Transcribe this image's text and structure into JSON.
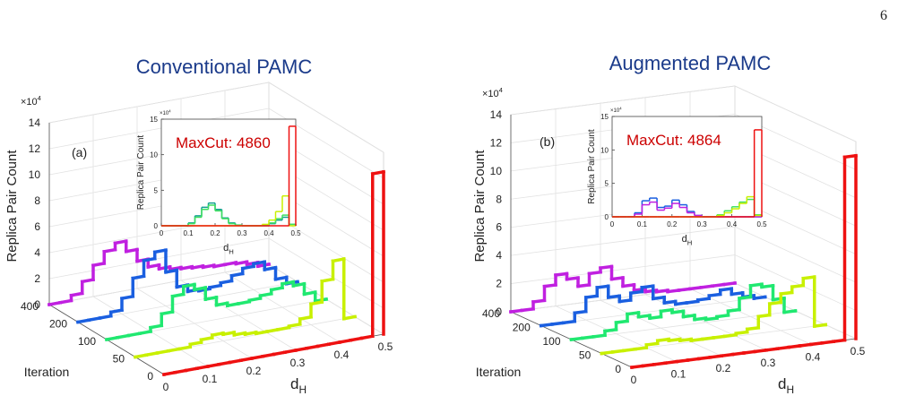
{
  "page_number": "6",
  "chart_data": [
    {
      "type": "histogram3d",
      "title": "Conventional PAMC",
      "panel_label": "(a)",
      "xlabel": "d",
      "xlabel_sub": "H",
      "ylabel": "Iteration",
      "zlabel": "Replica Pair Count",
      "z_multiplier": "×10",
      "z_multiplier_power": "4",
      "xlim": [
        0,
        0.5
      ],
      "xticks": [
        0,
        0.1,
        0.2,
        0.3,
        0.4,
        0.5
      ],
      "yticks": [
        0,
        50,
        100,
        200,
        400
      ],
      "zlim": [
        0,
        14
      ],
      "zticks": [
        0,
        2,
        4,
        6,
        8,
        10,
        12,
        14
      ],
      "bins": [
        0,
        0.025,
        0.05,
        0.075,
        0.1,
        0.125,
        0.15,
        0.175,
        0.2,
        0.225,
        0.25,
        0.275,
        0.3,
        0.325,
        0.35,
        0.375,
        0.4,
        0.425,
        0.45,
        0.475,
        0.5
      ],
      "series": [
        {
          "color": "#ee1111",
          "values": [
            0,
            0,
            0,
            0,
            0,
            0,
            0,
            0,
            0,
            0,
            0,
            0,
            0,
            0,
            0,
            0,
            0,
            0,
            0,
            12.5
          ]
        },
        {
          "color": "#c8f000",
          "values": [
            0,
            0,
            0,
            0,
            0,
            0.2,
            0.4,
            0.6,
            0.5,
            0.3,
            0.2,
            0.1,
            0.1,
            0.1,
            0.2,
            0.6,
            1.6,
            3.2,
            4.6,
            0
          ]
        },
        {
          "color": "#20e870",
          "values": [
            0,
            0,
            0,
            0,
            0.3,
            1.2,
            2.4,
            3.0,
            2.6,
            1.7,
            1.1,
            0.9,
            0.9,
            1.0,
            1.2,
            1.5,
            1.8,
            1.5,
            0.7,
            0
          ]
        },
        {
          "color": "#1a5fe0",
          "values": [
            0,
            0,
            0,
            0.3,
            1.2,
            2.6,
            3.8,
            4.3,
            2.6,
            1.3,
            0.8,
            0.7,
            0.8,
            1.0,
            1.4,
            1.8,
            2.0,
            1.4,
            0.5,
            0
          ]
        },
        {
          "color": "#c020e0",
          "values": [
            0,
            0,
            0.4,
            1.3,
            2.4,
            3.3,
            3.8,
            3.0,
            2.1,
            1.5,
            1.2,
            1.0,
            0.9,
            0.8,
            0.7,
            0.6,
            0.6,
            0.5,
            0.3,
            0
          ]
        }
      ],
      "inset": {
        "type": "histogram",
        "annotation": "MaxCut: 4860",
        "annotation_color": "#cc0000",
        "xlabel": "d",
        "xlabel_sub": "H",
        "ylabel": "Replica Pair Count",
        "y_multiplier": "×10",
        "y_multiplier_power": "4",
        "xlim": [
          0,
          0.5
        ],
        "xticks": [
          0,
          0.1,
          0.2,
          0.3,
          0.4,
          0.5
        ],
        "ylim": [
          0,
          15
        ],
        "yticks": [
          0,
          5,
          10,
          15
        ],
        "bins": [
          0,
          0.025,
          0.05,
          0.075,
          0.1,
          0.125,
          0.15,
          0.175,
          0.2,
          0.225,
          0.25,
          0.275,
          0.3,
          0.325,
          0.35,
          0.375,
          0.4,
          0.425,
          0.45,
          0.475,
          0.5
        ],
        "series": [
          {
            "color": "#10a090",
            "values": [
              0,
              0,
              0,
              0,
              0.4,
              1.4,
              2.6,
              3.2,
              2.3,
              1.1,
              0.4,
              0.1,
              0,
              0,
              0,
              0,
              0.3,
              0.8,
              1.2,
              0.2
            ]
          },
          {
            "color": "#40e060",
            "values": [
              0,
              0,
              0,
              0,
              0.3,
              1.2,
              2.3,
              2.9,
              2.1,
              1.0,
              0.3,
              0.1,
              0,
              0,
              0,
              0.1,
              0.4,
              1.0,
              1.5,
              0.2
            ]
          },
          {
            "color": "#c8f000",
            "values": [
              0,
              0,
              0,
              0,
              0,
              0,
              0,
              0,
              0,
              0,
              0,
              0,
              0,
              0,
              0,
              0.2,
              0.8,
              2.0,
              4.2,
              0
            ]
          },
          {
            "color": "#ee1111",
            "values": [
              0,
              0,
              0,
              0,
              0,
              0,
              0,
              0,
              0,
              0,
              0,
              0,
              0,
              0,
              0,
              0,
              0,
              0,
              0,
              14
            ]
          }
        ]
      }
    },
    {
      "type": "histogram3d",
      "title": "Augmented PAMC",
      "panel_label": "(b)",
      "xlabel": "d",
      "xlabel_sub": "H",
      "ylabel": "Iteration",
      "zlabel": "Replica Pair Count",
      "z_multiplier": "×10",
      "z_multiplier_power": "4",
      "xlim": [
        0,
        0.5
      ],
      "xticks": [
        0,
        0.1,
        0.2,
        0.3,
        0.4,
        0.5
      ],
      "yticks": [
        0,
        50,
        100,
        200,
        400
      ],
      "zlim": [
        0,
        14
      ],
      "zticks": [
        0,
        2,
        4,
        6,
        8,
        10,
        12,
        14
      ],
      "bins": [
        0,
        0.025,
        0.05,
        0.075,
        0.1,
        0.125,
        0.15,
        0.175,
        0.2,
        0.225,
        0.25,
        0.275,
        0.3,
        0.325,
        0.35,
        0.375,
        0.4,
        0.425,
        0.45,
        0.475,
        0.5
      ],
      "series": [
        {
          "color": "#ee1111",
          "values": [
            0,
            0,
            0,
            0,
            0,
            0,
            0,
            0,
            0,
            0,
            0,
            0,
            0,
            0,
            0,
            0,
            0,
            0,
            0,
            13
          ]
        },
        {
          "color": "#c8f000",
          "values": [
            0,
            0,
            0,
            0,
            0.2,
            0.4,
            0.3,
            0.2,
            0.1,
            0.1,
            0.1,
            0.1,
            0.2,
            0.4,
            1.2,
            2.0,
            2.6,
            3.0,
            3.5,
            0
          ]
        },
        {
          "color": "#20e870",
          "values": [
            0,
            0,
            0,
            0.3,
            0.8,
            1.3,
            1.0,
            0.8,
            1.2,
            1.0,
            0.6,
            0.3,
            0.2,
            0.3,
            0.6,
            1.4,
            2.2,
            2.0,
            1.0,
            0
          ]
        },
        {
          "color": "#1a5fe0",
          "values": [
            0,
            0,
            0,
            0.6,
            1.6,
            2.2,
            1.4,
            1.0,
            1.5,
            1.8,
            0.9,
            0.5,
            0.3,
            0.3,
            0.4,
            0.6,
            0.9,
            0.5,
            0.2,
            0
          ]
        },
        {
          "color": "#c020e0",
          "values": [
            0,
            0,
            0.5,
            1.5,
            2.2,
            1.8,
            1.2,
            2.0,
            2.3,
            1.4,
            0.8,
            0.4,
            0.2,
            0.1,
            0,
            0,
            0,
            0,
            0,
            0
          ]
        }
      ],
      "inset": {
        "type": "histogram",
        "annotation": "MaxCut: 4864",
        "annotation_color": "#cc0000",
        "xlabel": "d",
        "xlabel_sub": "H",
        "ylabel": "Replica Pair Count",
        "y_multiplier": "×10",
        "y_multiplier_power": "4",
        "xlim": [
          0,
          0.5
        ],
        "xticks": [
          0,
          0.1,
          0.2,
          0.3,
          0.4,
          0.5
        ],
        "ylim": [
          0,
          15
        ],
        "yticks": [
          0,
          5,
          10,
          15
        ],
        "bins": [
          0,
          0.025,
          0.05,
          0.075,
          0.1,
          0.125,
          0.15,
          0.175,
          0.2,
          0.225,
          0.25,
          0.275,
          0.3,
          0.325,
          0.35,
          0.375,
          0.4,
          0.425,
          0.45,
          0.475,
          0.5
        ],
        "series": [
          {
            "color": "#1a5fe0",
            "values": [
              0,
              0,
              0,
              0.6,
              2.4,
              2.8,
              1.4,
              1.6,
              2.5,
              1.8,
              0.8,
              0.2,
              0,
              0,
              0,
              0,
              0,
              0,
              0,
              0
            ]
          },
          {
            "color": "#c020e0",
            "values": [
              0,
              0,
              0,
              0.4,
              1.8,
              2.2,
              1.0,
              1.3,
              2.0,
              1.4,
              0.6,
              0.2,
              0,
              0,
              0,
              0,
              0,
              0,
              0,
              0
            ]
          },
          {
            "color": "#40e060",
            "values": [
              0,
              0,
              0,
              0,
              0,
              0,
              0,
              0,
              0,
              0,
              0,
              0,
              0,
              0,
              0.3,
              0.9,
              1.5,
              2.2,
              2.6,
              0.3
            ]
          },
          {
            "color": "#c8f000",
            "values": [
              0,
              0,
              0,
              0,
              0,
              0,
              0,
              0,
              0,
              0,
              0,
              0,
              0,
              0,
              0.2,
              0.6,
              1.2,
              2.0,
              3.0,
              0.2
            ]
          },
          {
            "color": "#ee1111",
            "values": [
              0,
              0,
              0,
              0,
              0,
              0,
              0,
              0,
              0,
              0,
              0,
              0,
              0,
              0,
              0,
              0,
              0,
              0,
              0,
              13
            ]
          }
        ]
      }
    }
  ]
}
